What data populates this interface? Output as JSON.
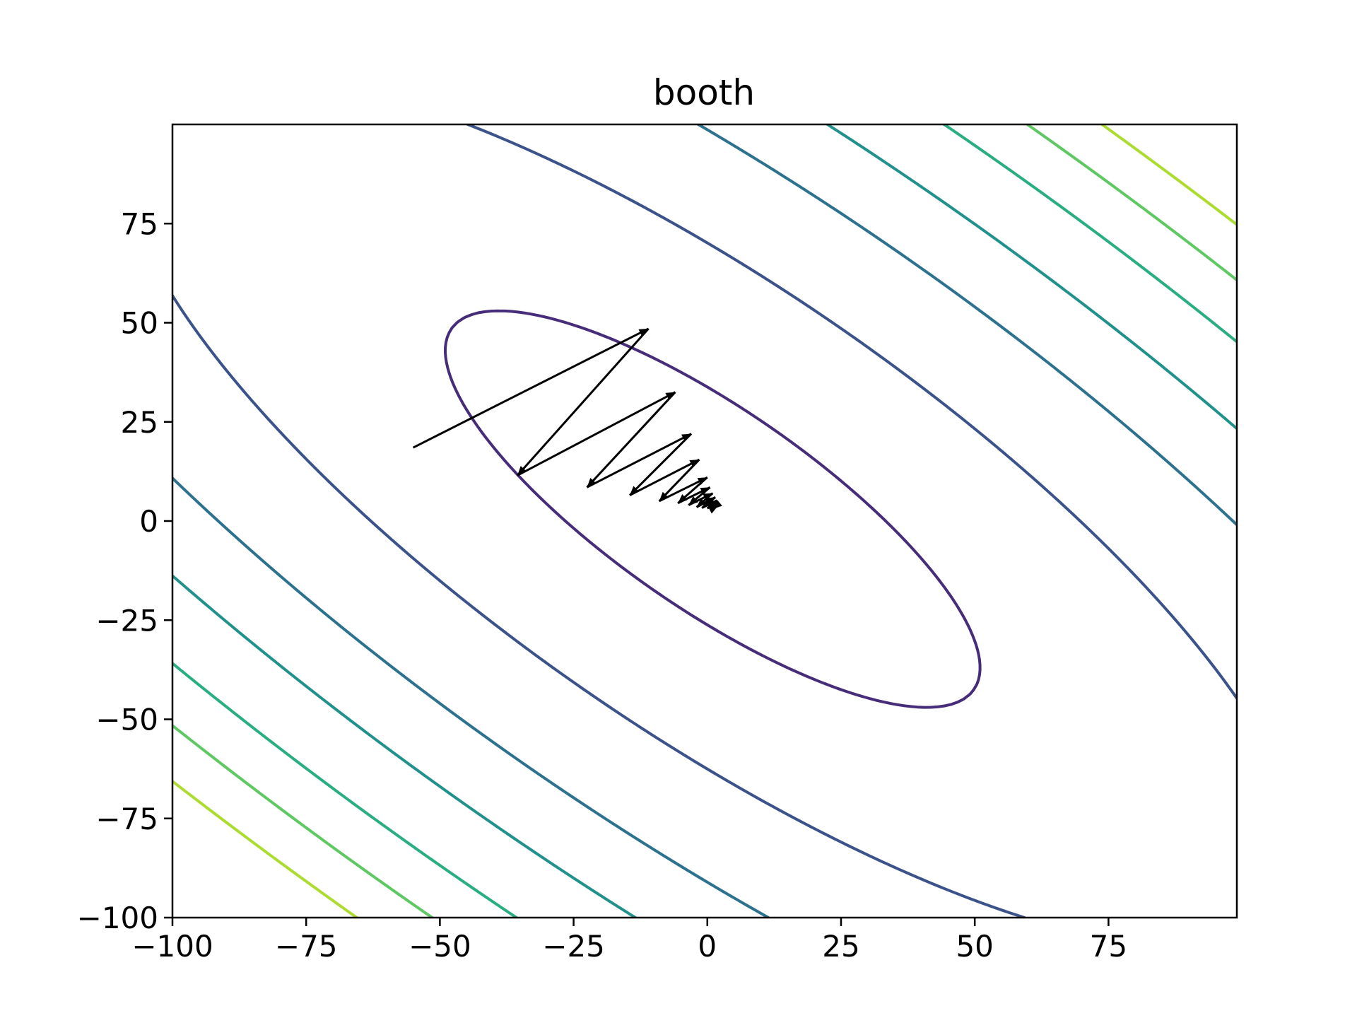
{
  "chart_data": {
    "type": "contour",
    "title": "booth",
    "xlabel": "",
    "ylabel": "",
    "xlim": [
      -100,
      99
    ],
    "ylim": [
      -100,
      100
    ],
    "x_ticks": [
      -100,
      -75,
      -50,
      -25,
      0,
      25,
      50,
      75
    ],
    "x_tick_labels": [
      "−100",
      "−75",
      "−50",
      "−25",
      "0",
      "25",
      "50",
      "75"
    ],
    "y_ticks": [
      -100,
      -75,
      -50,
      -25,
      0,
      25,
      50,
      75
    ],
    "y_tick_labels": [
      "−100",
      "−75",
      "−50",
      "−25",
      "0",
      "25",
      "50",
      "75"
    ],
    "grid": false,
    "contour_function": "(x + 2y - 7)^2 + (2x + y - 5)^2",
    "contour_levels": [
      4500,
      22000,
      45000,
      66000,
      90000,
      110000,
      130000
    ],
    "contour_colors": [
      "#472c7a",
      "#3b528b",
      "#2c728e",
      "#21918c",
      "#28ae80",
      "#5ec962",
      "#addc30"
    ],
    "path_color": "#000000",
    "descent_path": [
      {
        "x": -55,
        "y": 18.5
      },
      {
        "x": -11,
        "y": 48.5
      },
      {
        "x": -35.5,
        "y": 11.5
      },
      {
        "x": -6,
        "y": 32.5
      },
      {
        "x": -22.5,
        "y": 8.5
      },
      {
        "x": -3,
        "y": 22
      },
      {
        "x": -14.5,
        "y": 6.5
      },
      {
        "x": -1.5,
        "y": 15.5
      },
      {
        "x": -9,
        "y": 5
      },
      {
        "x": 0,
        "y": 11
      },
      {
        "x": -5.5,
        "y": 4.5
      },
      {
        "x": 0.5,
        "y": 8.5
      },
      {
        "x": -3.5,
        "y": 4
      },
      {
        "x": 1,
        "y": 7
      },
      {
        "x": -2,
        "y": 3.5
      },
      {
        "x": 1.5,
        "y": 6
      },
      {
        "x": -1,
        "y": 3.3
      },
      {
        "x": 1.8,
        "y": 5.2
      },
      {
        "x": 0,
        "y": 3.2
      },
      {
        "x": 2,
        "y": 4.6
      },
      {
        "x": 0.5,
        "y": 3.2
      },
      {
        "x": 2,
        "y": 4.2
      },
      {
        "x": 1,
        "y": 3.1
      },
      {
        "x": 2,
        "y": 3.8
      }
    ]
  }
}
